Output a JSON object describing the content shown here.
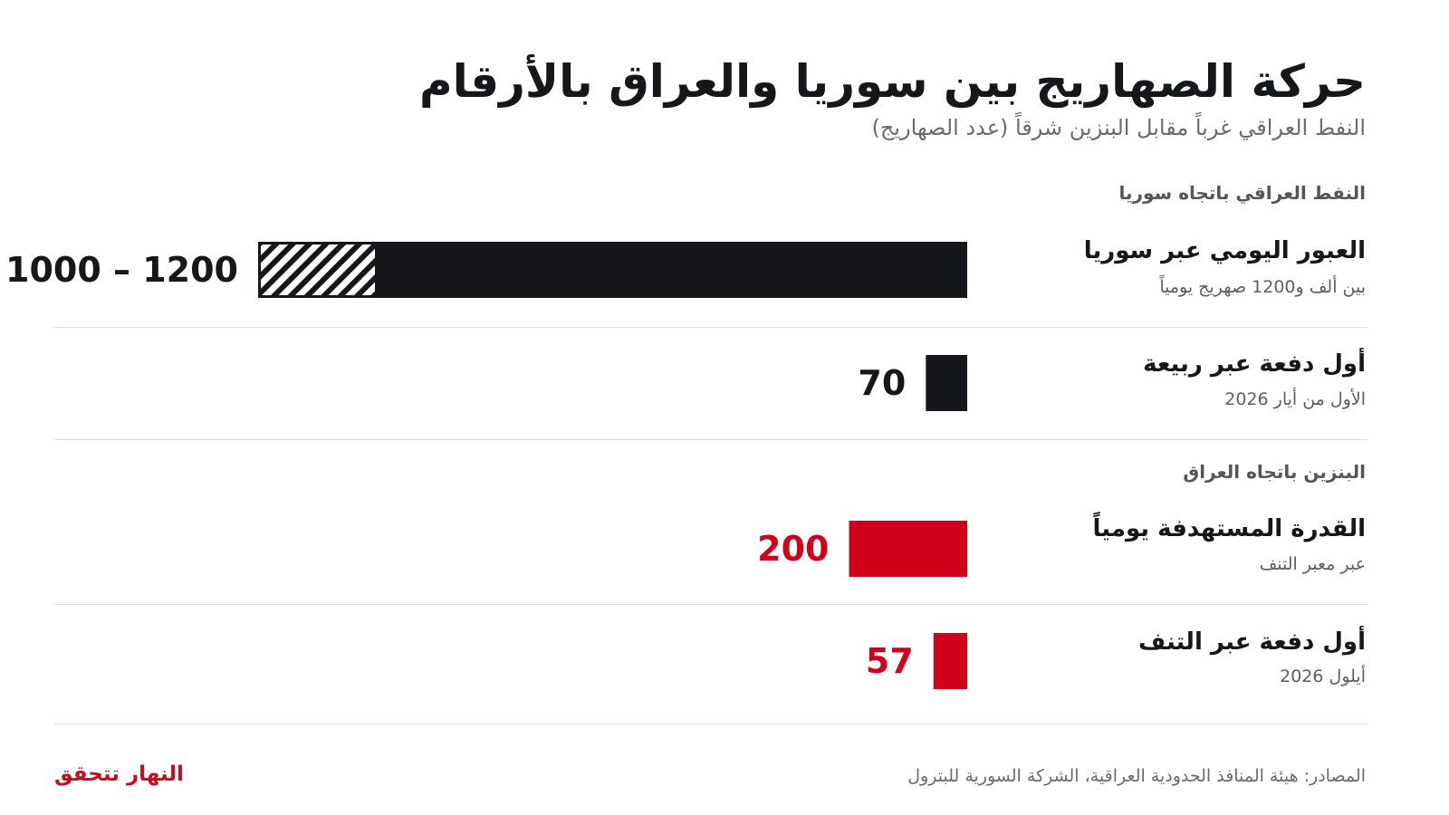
{
  "header": {
    "title": "حركة الصهاريج بين سوريا والعراق بالأرقام",
    "subtitle": "النفط العراقي غرباً مقابل البنزين شرقاً (عدد الصهاريج)"
  },
  "sections": [
    {
      "heading": "النفط العراقي باتجاه سوريا"
    },
    {
      "heading": "البنزين باتجاه العراق"
    }
  ],
  "rows": [
    {
      "label": "العبور اليومي عبر سوريا",
      "sublabel": "بين ألف و1200 صهريج يومياً",
      "value_text": "1000 – 1200"
    },
    {
      "label": "أول دفعة عبر ربيعة",
      "sublabel": "الأول من أيار 2026",
      "value_text": "70"
    },
    {
      "label": "القدرة المستهدفة يومياً",
      "sublabel": "عبر معبر التنف",
      "value_text": "200"
    },
    {
      "label": "أول دفعة عبر التنف",
      "sublabel": "أيلول 2026",
      "value_text": "57"
    }
  ],
  "colors": {
    "oil": "#16171a",
    "petrol": "#d0021b",
    "accent": "#cc0a1c"
  },
  "chart_data": {
    "type": "bar",
    "orientation": "horizontal",
    "categories": [
      "العبور اليومي عبر سوريا",
      "أول دفعة عبر ربيعة",
      "القدرة المستهدفة يومياً",
      "أول دفعة عبر التنف"
    ],
    "values": [
      1200,
      70,
      200,
      57
    ],
    "range_min": [
      1000,
      null,
      null,
      null
    ],
    "series_color": [
      "#16171a",
      "#16171a",
      "#d0021b",
      "#d0021b"
    ],
    "group": [
      "oil",
      "oil",
      "petrol",
      "petrol"
    ],
    "xlim": [
      0,
      1200
    ],
    "grid": false
  },
  "footer": {
    "sources": "المصادر: هيئة المنافذ الحدودية العراقية، الشركة السورية للبترول",
    "brand": "النهار تتحقق"
  }
}
